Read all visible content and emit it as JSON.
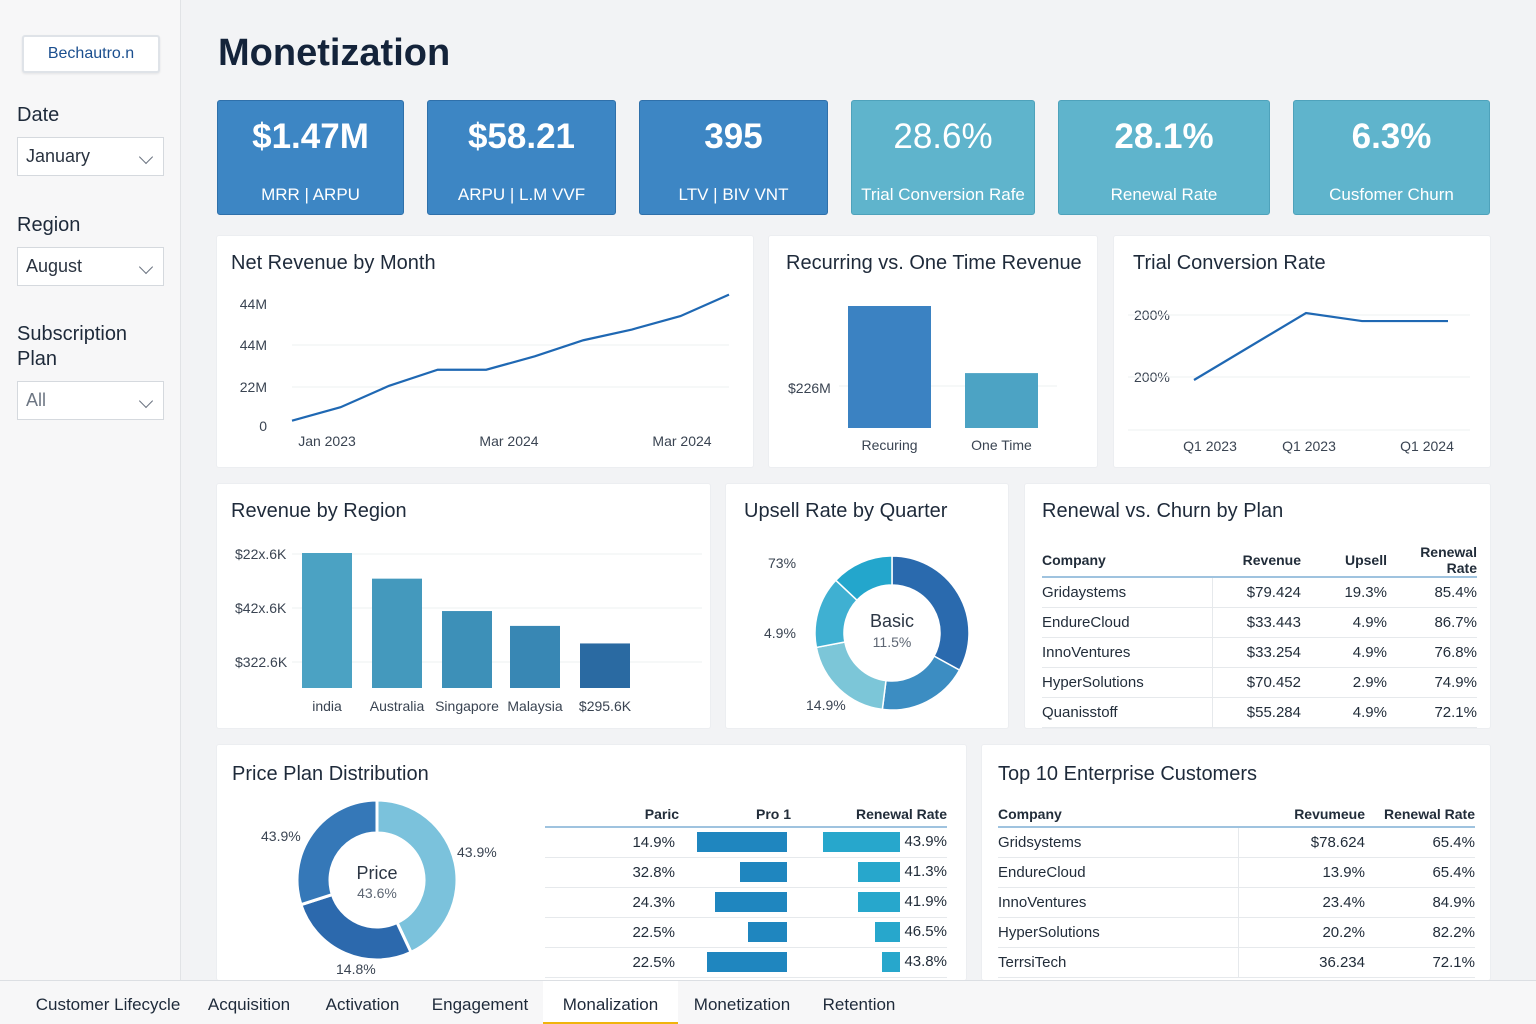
{
  "sidebar": {
    "logo": "Bechautro.n",
    "filters": [
      {
        "label": "Date",
        "value": "January"
      },
      {
        "label": "Region",
        "value": "August"
      },
      {
        "label": "Subscription Plan",
        "value": "All"
      }
    ]
  },
  "page_title": "Monetization",
  "kpis": [
    {
      "value": "$1.47M",
      "label": "MRR | ARPU"
    },
    {
      "value": "$58.21",
      "label": "ARPU | L.M VVF"
    },
    {
      "value": "395",
      "label": "LTV | BIV VNT"
    },
    {
      "value": "28.6%",
      "label": "Trial Conversion Rafe"
    },
    {
      "value": "28.1%",
      "label": "Renewal Rate"
    },
    {
      "value": "6.3%",
      "label": "Cusfomer Churn"
    }
  ],
  "colors": {
    "accent": "#1f68b3",
    "kpi_dark": "#3d86c4",
    "kpi_light": "#5fb4cc",
    "active_tab": "#f0b40c"
  },
  "chart_data": [
    {
      "type": "line",
      "title": "Net Revenue by Month",
      "y_tick_labels": [
        "44M",
        "44M",
        "22M",
        "0"
      ],
      "x_tick_labels": [
        "Jan 2023",
        "Mar 2024",
        "Mar 2024"
      ],
      "series": [
        {
          "values": [
            2,
            7,
            15,
            21,
            21,
            26,
            32,
            36,
            41,
            49
          ]
        }
      ],
      "ylim": [
        0,
        50
      ]
    },
    {
      "type": "bar",
      "title": "Recurring vs. One Time Revenue",
      "y_tick_labels": [
        "$226M"
      ],
      "categories": [
        "Recuring",
        "One Time"
      ],
      "values": [
        100,
        45
      ],
      "ylim": [
        0,
        100
      ]
    },
    {
      "type": "line",
      "title": "Trial Conversion Rate",
      "y_tick_labels": [
        "200%",
        "200%"
      ],
      "x_tick_labels": [
        "Q1 2023",
        "Q1 2023",
        "Q1 2024"
      ],
      "series": [
        {
          "values": [
            0,
            50,
            100,
            88,
            88,
            88
          ]
        }
      ],
      "ylim": [
        0,
        100
      ]
    },
    {
      "type": "bar",
      "title": "Revenue by Region",
      "y_tick_labels": [
        "$22x.6K",
        "$42x.6K",
        "$322.6K"
      ],
      "categories": [
        "india",
        "Australia",
        "Singapore",
        "Malaysia",
        "$295.6K"
      ],
      "values": [
        100,
        81,
        57,
        46,
        33
      ],
      "ylim": [
        0,
        100
      ]
    },
    {
      "type": "pie",
      "title": "Upsell Rate by Quarter",
      "center_label": "Basic",
      "center_value": "11.5%",
      "outer_labels": [
        "73%",
        "4.9%",
        "14.9%"
      ],
      "values": [
        33,
        19,
        20,
        15,
        13
      ]
    },
    {
      "type": "pie",
      "title": "Price Plan Distribution",
      "center_label": "Price",
      "center_value": "43.6%",
      "outer_labels": [
        "43.9%",
        "43.9%",
        "14.8%"
      ],
      "values": [
        43,
        27,
        30
      ]
    }
  ],
  "renewal_churn": {
    "title": "Renewal vs. Churn by Plan",
    "columns": [
      "Company",
      "Revenue",
      "Upsell",
      "Renewal Rate"
    ],
    "rows": [
      [
        "Gridaystems",
        "$79.424",
        "19.3%",
        "85.4%"
      ],
      [
        "EndureCloud",
        "$33.443",
        "4.9%",
        "86.7%"
      ],
      [
        "InnoVentures",
        "$33.254",
        "4.9%",
        "76.8%"
      ],
      [
        "HyperSolutions",
        "$70.452",
        "2.9%",
        "74.9%"
      ],
      [
        "Quanisstoff",
        "$55.284",
        "4.9%",
        "72.1%"
      ]
    ]
  },
  "price_table": {
    "columns": [
      "Paric",
      "Pro 1",
      "Renewal Rate"
    ],
    "rows": [
      {
        "paric": "14.9%",
        "pro": 100,
        "renewal": "43.9%",
        "renewal_bar": 100
      },
      {
        "paric": "32.8%",
        "pro": 52,
        "renewal": "41.3%",
        "renewal_bar": 55
      },
      {
        "paric": "24.3%",
        "pro": 80,
        "renewal": "41.9%",
        "renewal_bar": 55
      },
      {
        "paric": "22.5%",
        "pro": 43,
        "renewal": "46.5%",
        "renewal_bar": 33
      },
      {
        "paric": "22.5%",
        "pro": 89,
        "renewal": "43.8%",
        "renewal_bar": 24
      }
    ]
  },
  "enterprise": {
    "title": "Top 10 Enterprise Customers",
    "columns": [
      "Company",
      "Revumeue",
      "Renewal  Rate"
    ],
    "rows": [
      [
        "Gridsystems",
        "$78.624",
        "65.4%"
      ],
      [
        "EndureCloud",
        "13.9%",
        "65.4%"
      ],
      [
        "InnoVentures",
        "23.4%",
        "84.9%"
      ],
      [
        "HyperSolutions",
        "20.2%",
        "82.2%"
      ],
      [
        "TerrsiTech",
        "36.234",
        "72.1%"
      ]
    ]
  },
  "tabs": [
    "Customer Lifecycle",
    "Acquisition",
    "Activation",
    "Engagement",
    "Monalization",
    "Monetization",
    "Retention"
  ],
  "active_tab": 4
}
